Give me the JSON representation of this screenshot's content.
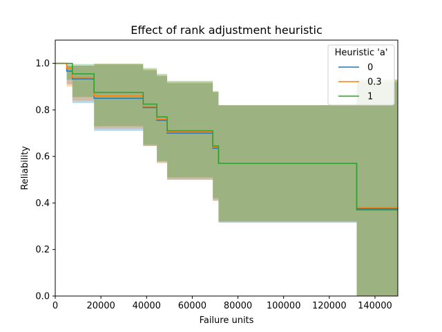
{
  "chart_data": {
    "type": "line",
    "title": "Effect of rank adjustment heuristic",
    "xlabel": "Failure units",
    "ylabel": "Reliability",
    "xlim": [
      0,
      150000
    ],
    "ylim": [
      0,
      1.1
    ],
    "x_ticks": [
      0,
      20000,
      40000,
      60000,
      80000,
      100000,
      120000,
      140000
    ],
    "x_tick_labels": [
      "0",
      "20000",
      "40000",
      "60000",
      "80000",
      "100000",
      "120000",
      "140000"
    ],
    "y_ticks": [
      0.0,
      0.2,
      0.4,
      0.6,
      0.8,
      1.0
    ],
    "y_tick_labels": [
      "0.0",
      "0.2",
      "0.4",
      "0.6",
      "0.8",
      "1.0"
    ],
    "grid": false,
    "legend": {
      "title": "Heuristic 'a'",
      "placement": "top-right"
    },
    "series": [
      {
        "name": "0",
        "color": "#1f77b4",
        "x": [
          0,
          5000,
          7500,
          17000,
          38500,
          44500,
          49000,
          69000,
          71500,
          132000,
          150000
        ],
        "y": [
          1.0,
          0.967,
          0.933,
          0.85,
          0.81,
          0.755,
          0.7,
          0.635,
          0.57,
          0.375,
          0.375
        ],
        "ci_lower": [
          1.0,
          0.91,
          0.83,
          0.71,
          0.645,
          0.575,
          0.5,
          0.41,
          0.315,
          0.0,
          0.0
        ],
        "ci_upper": [
          1.0,
          0.99,
          0.99,
          0.995,
          0.97,
          0.945,
          0.915,
          0.875,
          0.82,
          0.92,
          0.92
        ]
      },
      {
        "name": "0.3",
        "color": "#ff7f0e",
        "x": [
          0,
          5000,
          7500,
          17000,
          38500,
          44500,
          49000,
          69000,
          71500,
          132000,
          150000
        ],
        "y": [
          1.0,
          0.98,
          0.94,
          0.86,
          0.815,
          0.76,
          0.705,
          0.64,
          0.57,
          0.38,
          0.38
        ],
        "ci_lower": [
          1.0,
          0.9,
          0.84,
          0.72,
          0.645,
          0.57,
          0.5,
          0.41,
          0.32,
          0.0,
          0.0
        ],
        "ci_upper": [
          1.0,
          0.99,
          0.99,
          0.998,
          0.975,
          0.95,
          0.92,
          0.88,
          0.82,
          0.93,
          0.93
        ]
      },
      {
        "name": "1",
        "color": "#2ca02c",
        "x": [
          0,
          5000,
          7500,
          17000,
          38500,
          44500,
          49000,
          69000,
          71500,
          132000,
          150000
        ],
        "y": [
          1.0,
          1.0,
          0.955,
          0.875,
          0.825,
          0.77,
          0.71,
          0.645,
          0.57,
          0.37,
          0.37
        ],
        "ci_lower": [
          1.0,
          0.93,
          0.855,
          0.73,
          0.65,
          0.58,
          0.51,
          0.42,
          0.32,
          0.0,
          0.0
        ],
        "ci_upper": [
          1.0,
          1.0,
          0.997,
          0.999,
          0.98,
          0.955,
          0.925,
          0.88,
          0.82,
          0.93,
          0.93
        ]
      }
    ]
  }
}
